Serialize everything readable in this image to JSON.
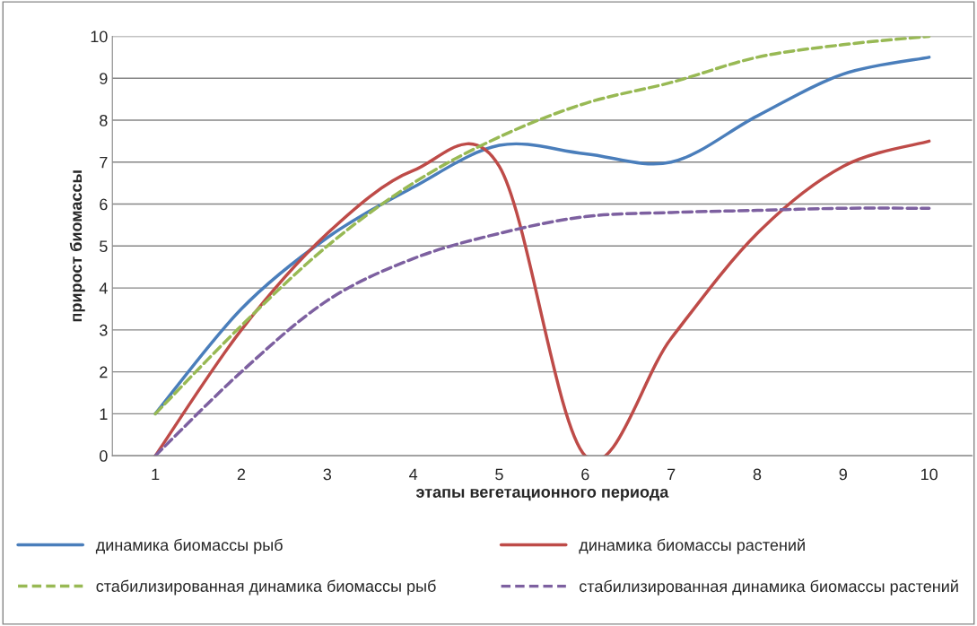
{
  "chart_data": {
    "type": "line",
    "xlabel": "этапы вегетационного периода",
    "ylabel": "прирост биомассы",
    "categories": [
      "1",
      "2",
      "3",
      "4",
      "5",
      "6",
      "7",
      "8",
      "9",
      "10"
    ],
    "series": [
      {
        "name": "динамика биомассы рыб",
        "color": "#4a7ebb",
        "line_style": "solid",
        "values": [
          1,
          3.5,
          5.2,
          6.4,
          7.4,
          7.2,
          7.0,
          8.1,
          9.1,
          9.5
        ]
      },
      {
        "name": "динамика биомассы растений",
        "color": "#be4b48",
        "line_style": "solid",
        "values": [
          0,
          3.0,
          5.3,
          6.8,
          6.9,
          0,
          2.8,
          5.3,
          6.9,
          7.5
        ]
      },
      {
        "name": "стабилизированная динамика биомассы рыб",
        "color": "#98b954",
        "line_style": "dashed",
        "values": [
          1,
          3.1,
          5.0,
          6.5,
          7.6,
          8.4,
          8.9,
          9.5,
          9.8,
          10
        ]
      },
      {
        "name": "стабилизированная динамика биомассы растений",
        "color": "#7d60a0",
        "line_style": "dashed",
        "values": [
          0,
          2.0,
          3.7,
          4.7,
          5.3,
          5.7,
          5.8,
          5.85,
          5.9,
          5.9
        ]
      }
    ],
    "ylim": [
      0,
      10
    ],
    "yticks": [
      0,
      1,
      2,
      3,
      4,
      5,
      6,
      7,
      8,
      9,
      10
    ],
    "grid": "y",
    "legend": "bottom",
    "marker": "none"
  }
}
